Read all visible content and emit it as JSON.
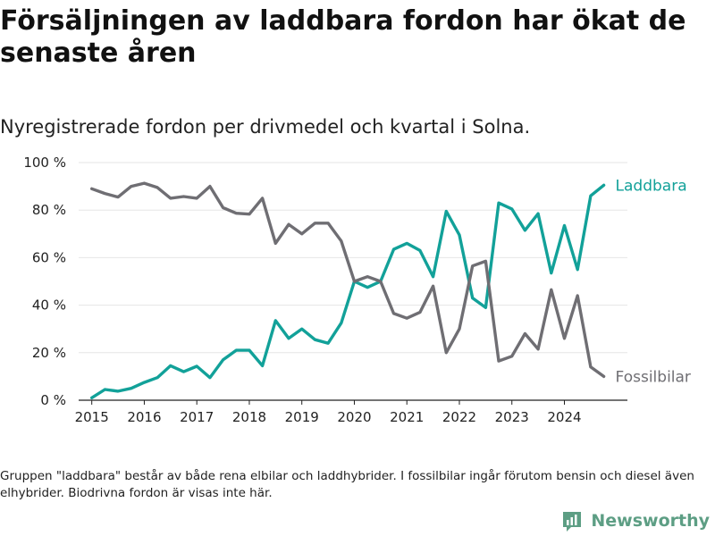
{
  "title": "Försäljningen av laddbara fordon har ökat de senaste åren",
  "subtitle": "Nyregistrerade fordon per drivmedel och kvartal i Solna.",
  "footnote": "Gruppen \"laddbara\" består av både rena elbilar och laddhybrider. I fossilbilar ingår förutom bensin och diesel även elhybrider. Biodrivna fordon är visas inte här.",
  "brand": {
    "name": "Newsworthy",
    "icon": "newsworthy-logo-icon",
    "color": "#5d9e84"
  },
  "colors": {
    "laddbara": "#12a199",
    "fossilbilar": "#6f6e73",
    "axis": "#222222",
    "grid": "#e6e6e6"
  },
  "chart_data": {
    "type": "line",
    "title": "Försäljningen av laddbara fordon har ökat de senaste åren",
    "xlabel": "",
    "ylabel": "",
    "ylim": [
      0,
      100
    ],
    "xlim": [
      2014.75,
      2025.2
    ],
    "grid": true,
    "yticks": [
      0,
      20,
      40,
      60,
      80,
      100
    ],
    "ytick_labels": [
      "0 %",
      "20 %",
      "40 %",
      "60 %",
      "80 %",
      "100 %"
    ],
    "xticks": [
      2015,
      2016,
      2017,
      2018,
      2019,
      2020,
      2021,
      2022,
      2023,
      2024
    ],
    "xtick_labels": [
      "2015",
      "2016",
      "2017",
      "2018",
      "2019",
      "2020",
      "2021",
      "2022",
      "2023",
      "2024"
    ],
    "x": [
      2015.0,
      2015.25,
      2015.5,
      2015.75,
      2016.0,
      2016.25,
      2016.5,
      2016.75,
      2017.0,
      2017.25,
      2017.5,
      2017.75,
      2018.0,
      2018.25,
      2018.5,
      2018.75,
      2019.0,
      2019.25,
      2019.5,
      2019.75,
      2020.0,
      2020.25,
      2020.5,
      2020.75,
      2021.0,
      2021.25,
      2021.5,
      2021.75,
      2022.0,
      2022.25,
      2022.5,
      2022.75,
      2023.0,
      2023.25,
      2023.5,
      2023.75,
      2024.0,
      2024.25,
      2024.5,
      2024.75
    ],
    "series": [
      {
        "name": "Laddbara",
        "label": "Laddbara",
        "color": "#12a199",
        "values": [
          1,
          4.5,
          3.8,
          5,
          7.5,
          9.5,
          14.5,
          12,
          14.3,
          9.5,
          17,
          21,
          21,
          14.5,
          33.5,
          26,
          30,
          25.5,
          24,
          32.5,
          50,
          47.5,
          50,
          63.5,
          66,
          63,
          52,
          79.5,
          69.5,
          43,
          39,
          83,
          80.5,
          71.5,
          78.5,
          53.5,
          73.5,
          55,
          86,
          90.5
        ]
      },
      {
        "name": "Fossilbilar",
        "label": "Fossilbilar",
        "color": "#6f6e73",
        "values": [
          89,
          87,
          85.5,
          90,
          91.3,
          89.5,
          85,
          85.7,
          85,
          90,
          81,
          78.7,
          78.3,
          85,
          66,
          74,
          70,
          74.5,
          74.5,
          67,
          50,
          52,
          50,
          36.5,
          34.5,
          37,
          48,
          20,
          30,
          56.5,
          58.5,
          16.5,
          18.5,
          28,
          21.5,
          46.5,
          26,
          44,
          14,
          10
        ]
      }
    ]
  }
}
